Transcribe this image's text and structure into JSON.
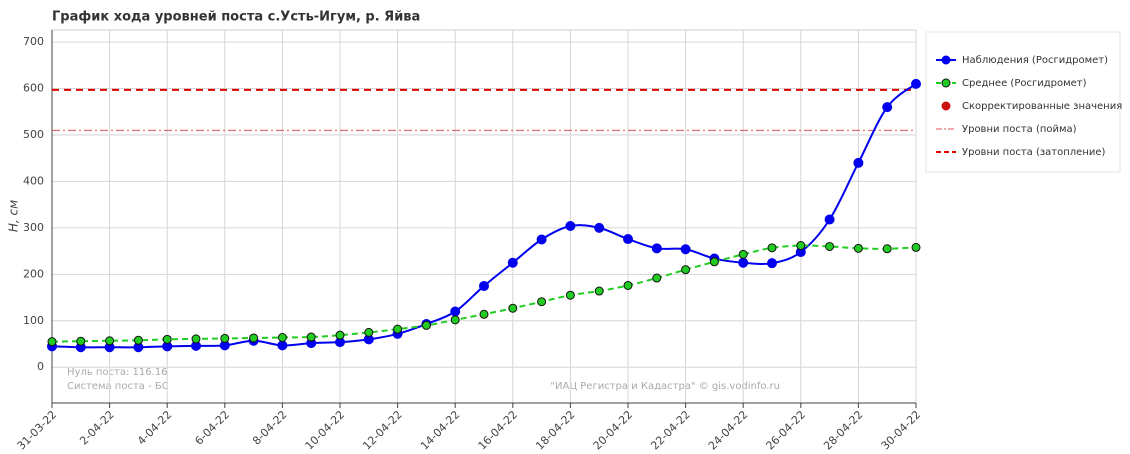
{
  "chart_data": {
    "type": "line",
    "title": "График хода уровней поста с.Усть-Игум, р. Яйва",
    "y_label": "H, см",
    "x": [
      "31-03-22",
      "1-04-22",
      "2-04-22",
      "3-04-22",
      "4-04-22",
      "5-04-22",
      "6-04-22",
      "7-04-22",
      "8-04-22",
      "9-04-22",
      "10-04-22",
      "11-04-22",
      "12-04-22",
      "13-04-22",
      "14-04-22",
      "15-04-22",
      "16-04-22",
      "17-04-22",
      "18-04-22",
      "19-04-22",
      "20-04-22",
      "21-04-22",
      "22-04-22",
      "23-04-22",
      "24-04-22",
      "25-04-22",
      "26-04-22",
      "27-04-22",
      "28-04-22",
      "29-04-22",
      "30-04-22"
    ],
    "xticks": [
      "31-03-22",
      "2-04-22",
      "4-04-22",
      "6-04-22",
      "8-04-22",
      "10-04-22",
      "12-04-22",
      "14-04-22",
      "16-04-22",
      "18-04-22",
      "20-04-22",
      "22-04-22",
      "24-04-22",
      "26-04-22",
      "28-04-22",
      "30-04-22"
    ],
    "ylim": [
      -77,
      726
    ],
    "yticks": [
      0,
      100,
      200,
      300,
      400,
      500,
      600,
      700
    ],
    "grid": true,
    "legend": "right",
    "series": [
      {
        "name": "Наблюдения (Росгидромет)",
        "color": "#0000ee",
        "values": [
          45,
          43,
          43,
          43,
          45,
          46,
          47,
          57,
          47,
          52,
          54,
          60,
          72,
          93,
          120,
          175,
          225,
          275,
          304,
          300,
          276,
          256,
          254,
          234,
          225,
          224,
          248,
          318,
          440,
          560,
          610
        ]
      },
      {
        "name": "Среднее (Росгидромет)",
        "color": "#22cc22",
        "values": [
          55,
          56,
          57,
          58,
          60,
          61,
          62,
          63,
          64,
          65,
          69,
          75,
          82,
          90,
          102,
          114,
          127,
          141,
          155,
          164,
          176,
          192,
          210,
          227,
          243,
          257,
          262,
          260,
          256,
          255,
          258
        ]
      },
      {
        "name": "Скорректированные значения",
        "color": "#cc1111",
        "values": [
          null,
          null,
          null,
          null,
          null,
          null,
          null,
          null,
          null,
          null,
          null,
          null,
          null,
          null,
          null,
          null,
          null,
          null,
          null,
          null,
          null,
          null,
          null,
          null,
          null,
          null,
          null,
          null,
          null,
          null,
          null
        ]
      }
    ],
    "hlines": [
      {
        "name": "Уровни поста (пойма)",
        "value": 510,
        "color": "#e05050",
        "style": "dashdot"
      },
      {
        "name": "Уровни поста (затопление)",
        "value": 597,
        "color": "#dd0000",
        "style": "dashed"
      }
    ],
    "annotations": [
      "Нуль поста: 116.16",
      "Система поста - БС",
      "\"ИАЦ Регистра и Кадастра\" © gis.vodinfo.ru"
    ]
  }
}
